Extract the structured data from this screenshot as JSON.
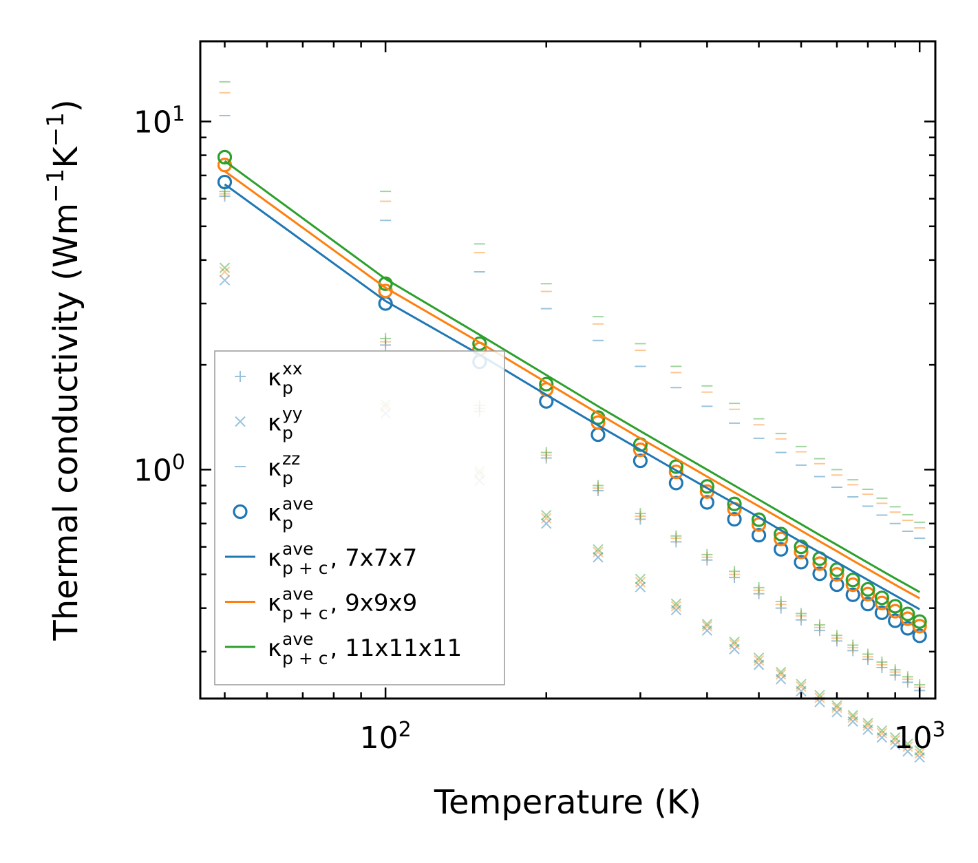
{
  "chart_data": {
    "type": "scatter",
    "title": "",
    "xlabel": "Temperature (K)",
    "ylabel": "Thermal conductivity (Wm⁻¹K⁻¹)",
    "xscale": "log",
    "yscale": "log",
    "xlim": [
      45,
      1070
    ],
    "ylim": [
      0.22,
      17
    ],
    "xticks": [
      {
        "value": 100,
        "base": "10",
        "exp": "2"
      },
      {
        "value": 1000,
        "base": "10",
        "exp": "3"
      }
    ],
    "yticks": [
      {
        "value": 1,
        "base": "10",
        "exp": "0"
      },
      {
        "value": 10,
        "base": "10",
        "exp": "1"
      }
    ],
    "legend_position": "lower-left",
    "x": [
      50,
      100,
      150,
      200,
      250,
      300,
      350,
      400,
      450,
      500,
      550,
      600,
      650,
      700,
      750,
      800,
      850,
      900,
      950,
      1000
    ],
    "mesh_colors": {
      "7x7x7": "#1f77b4",
      "9x9x9": "#ff7f0e",
      "11x11x11": "#2ca02c"
    },
    "point_series": [
      {
        "component": "xx",
        "marker": "plus",
        "mesh": "7x7x7",
        "values": [
          6.1,
          2.28,
          1.47,
          1.08,
          0.87,
          0.72,
          0.62,
          0.55,
          0.49,
          0.44,
          0.4,
          0.37,
          0.345,
          0.322,
          0.302,
          0.285,
          0.27,
          0.257,
          0.245,
          0.232
        ]
      },
      {
        "component": "xx",
        "marker": "plus",
        "mesh": "9x9x9",
        "values": [
          6.2,
          2.33,
          1.5,
          1.1,
          0.885,
          0.735,
          0.635,
          0.56,
          0.5,
          0.45,
          0.41,
          0.38,
          0.352,
          0.328,
          0.308,
          0.29,
          0.275,
          0.262,
          0.25,
          0.237
        ]
      },
      {
        "component": "xx",
        "marker": "plus",
        "mesh": "11x11x11",
        "values": [
          6.3,
          2.38,
          1.53,
          1.12,
          0.9,
          0.748,
          0.645,
          0.57,
          0.51,
          0.458,
          0.418,
          0.386,
          0.358,
          0.334,
          0.313,
          0.295,
          0.28,
          0.266,
          0.254,
          0.241
        ]
      },
      {
        "component": "yy",
        "marker": "x",
        "mesh": "7x7x7",
        "values": [
          3.5,
          1.45,
          0.93,
          0.7,
          0.56,
          0.46,
          0.395,
          0.345,
          0.305,
          0.275,
          0.25,
          0.231,
          0.215,
          0.201,
          0.189,
          0.179,
          0.17,
          0.162,
          0.155,
          0.149
        ]
      },
      {
        "component": "yy",
        "marker": "x",
        "mesh": "9x9x9",
        "values": [
          3.7,
          1.51,
          0.97,
          0.725,
          0.58,
          0.475,
          0.405,
          0.355,
          0.315,
          0.283,
          0.258,
          0.238,
          0.221,
          0.207,
          0.194,
          0.184,
          0.175,
          0.167,
          0.16,
          0.153
        ]
      },
      {
        "component": "yy",
        "marker": "x",
        "mesh": "11x11x11",
        "values": [
          3.8,
          1.54,
          0.99,
          0.74,
          0.59,
          0.485,
          0.412,
          0.36,
          0.32,
          0.288,
          0.262,
          0.242,
          0.225,
          0.21,
          0.197,
          0.187,
          0.178,
          0.17,
          0.163,
          0.156
        ]
      },
      {
        "component": "zz",
        "marker": "dash",
        "mesh": "7x7x7",
        "values": [
          10.4,
          5.2,
          3.7,
          2.9,
          2.35,
          1.98,
          1.72,
          1.52,
          1.36,
          1.23,
          1.12,
          1.03,
          0.955,
          0.89,
          0.835,
          0.785,
          0.74,
          0.7,
          0.665,
          0.635
        ]
      },
      {
        "component": "zz",
        "marker": "dash",
        "mesh": "9x9x9",
        "values": [
          12.1,
          5.9,
          4.2,
          3.25,
          2.62,
          2.2,
          1.9,
          1.67,
          1.49,
          1.345,
          1.225,
          1.125,
          1.04,
          0.965,
          0.905,
          0.85,
          0.8,
          0.755,
          0.715,
          0.68
        ]
      },
      {
        "component": "zz",
        "marker": "dash",
        "mesh": "11x11x11",
        "values": [
          13.0,
          6.3,
          4.45,
          3.42,
          2.75,
          2.3,
          1.98,
          1.74,
          1.55,
          1.4,
          1.27,
          1.165,
          1.075,
          1.0,
          0.935,
          0.878,
          0.828,
          0.782,
          0.742,
          0.706
        ]
      },
      {
        "component": "ave",
        "marker": "circle",
        "mesh": "7x7x7",
        "values": [
          6.7,
          3.0,
          2.04,
          1.57,
          1.26,
          1.06,
          0.915,
          0.805,
          0.72,
          0.648,
          0.59,
          0.542,
          0.502,
          0.467,
          0.437,
          0.411,
          0.388,
          0.368,
          0.35,
          0.333
        ]
      },
      {
        "component": "ave",
        "marker": "circle",
        "mesh": "9x9x9",
        "values": [
          7.5,
          3.26,
          2.22,
          1.7,
          1.365,
          1.14,
          0.985,
          0.865,
          0.77,
          0.695,
          0.632,
          0.58,
          0.537,
          0.5,
          0.467,
          0.439,
          0.414,
          0.392,
          0.373,
          0.355
        ]
      },
      {
        "component": "ave",
        "marker": "circle",
        "mesh": "11x11x11",
        "values": [
          7.9,
          3.42,
          2.3,
          1.76,
          1.41,
          1.18,
          1.02,
          0.895,
          0.797,
          0.718,
          0.653,
          0.6,
          0.555,
          0.516,
          0.482,
          0.453,
          0.428,
          0.405,
          0.385,
          0.366
        ]
      }
    ],
    "line_series": [
      {
        "mesh": "7x7x7",
        "values": [
          6.6,
          3.05,
          2.14,
          1.64,
          1.34,
          1.14,
          0.995,
          0.885,
          0.8,
          0.73,
          0.67,
          0.62,
          0.578,
          0.542,
          0.51,
          0.482,
          0.457,
          0.435,
          0.415,
          0.397
        ]
      },
      {
        "mesh": "9x9x9",
        "values": [
          7.2,
          3.33,
          2.32,
          1.78,
          1.45,
          1.23,
          1.075,
          0.955,
          0.86,
          0.785,
          0.722,
          0.668,
          0.622,
          0.583,
          0.548,
          0.518,
          0.491,
          0.467,
          0.446,
          0.427
        ]
      },
      {
        "mesh": "11x11x11",
        "values": [
          7.7,
          3.53,
          2.44,
          1.87,
          1.52,
          1.29,
          1.125,
          1.0,
          0.9,
          0.82,
          0.753,
          0.697,
          0.649,
          0.608,
          0.572,
          0.54,
          0.512,
          0.487,
          0.465,
          0.445
        ]
      }
    ],
    "legend": [
      {
        "marker": "plus",
        "color": "#1f77b4",
        "alpha": 0.45,
        "sym": "κ",
        "sub": "p",
        "sup": "xx",
        "suffix": ""
      },
      {
        "marker": "x",
        "color": "#1f77b4",
        "alpha": 0.45,
        "sym": "κ",
        "sub": "p",
        "sup": "yy",
        "suffix": ""
      },
      {
        "marker": "dash",
        "color": "#1f77b4",
        "alpha": 0.45,
        "sym": "κ",
        "sub": "p",
        "sup": "zz",
        "suffix": ""
      },
      {
        "marker": "circle",
        "color": "#1f77b4",
        "alpha": 1,
        "sym": "κ",
        "sub": "p",
        "sup": "ave",
        "suffix": ""
      },
      {
        "marker": "line",
        "color": "#1f77b4",
        "alpha": 1,
        "sym": "κ",
        "sub": "p + c",
        "sup": "ave",
        "suffix": ", 7x7x7"
      },
      {
        "marker": "line",
        "color": "#ff7f0e",
        "alpha": 1,
        "sym": "κ",
        "sub": "p + c",
        "sup": "ave",
        "suffix": ", 9x9x9"
      },
      {
        "marker": "line",
        "color": "#2ca02c",
        "alpha": 1,
        "sym": "κ",
        "sub": "p + c",
        "sup": "ave",
        "suffix": ", 11x11x11"
      }
    ]
  }
}
